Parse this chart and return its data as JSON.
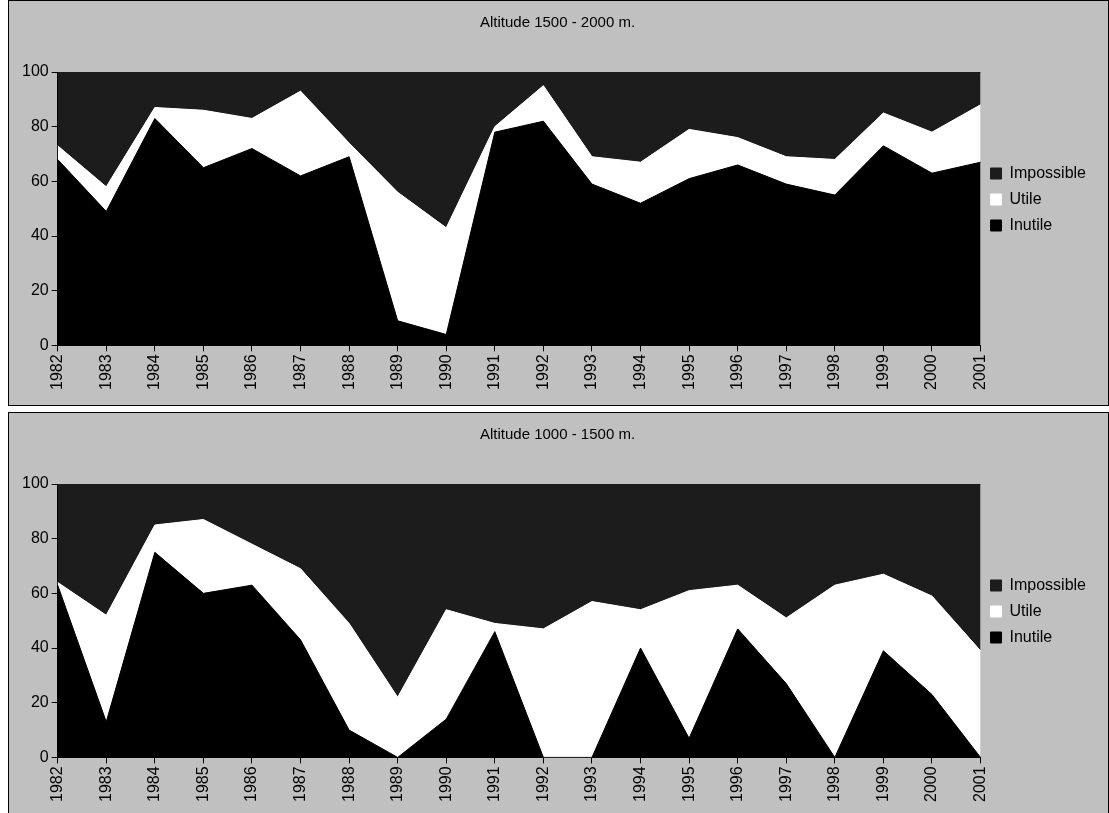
{
  "chart_data": [
    {
      "type": "area",
      "title": "Altitude 1500 - 2000 m.",
      "categories": [
        "1982",
        "1983",
        "1984",
        "1985",
        "1986",
        "1987",
        "1988",
        "1989",
        "1990",
        "1991",
        "1992",
        "1993",
        "1994",
        "1995",
        "1996",
        "1997",
        "1998",
        "1999",
        "2000",
        "2001"
      ],
      "stacked": true,
      "legend": "right",
      "ylim": [
        0,
        100
      ],
      "yticks": [
        0,
        20,
        40,
        60,
        80,
        100
      ],
      "series": [
        {
          "name": "Inutile",
          "color": "#000000",
          "values": [
            68,
            49,
            83,
            65,
            72,
            62,
            69,
            9,
            4,
            78,
            82,
            59,
            52,
            61,
            66,
            59,
            55,
            73,
            63,
            67
          ]
        },
        {
          "name": "Utile",
          "color": "#ffffff",
          "values": [
            5,
            9,
            4,
            21,
            11,
            31,
            5,
            47,
            39,
            2,
            13,
            10,
            15,
            18,
            10,
            10,
            13,
            12,
            15,
            21
          ]
        },
        {
          "name": "Impossible",
          "color": "#1c1c1c",
          "values": [
            27,
            42,
            13,
            14,
            17,
            7,
            26,
            44,
            57,
            20,
            5,
            31,
            33,
            21,
            24,
            31,
            32,
            15,
            22,
            12
          ]
        }
      ]
    },
    {
      "type": "area",
      "title": "Altitude 1000 - 1500 m.",
      "categories": [
        "1982",
        "1983",
        "1984",
        "1985",
        "1986",
        "1987",
        "1988",
        "1989",
        "1990",
        "1991",
        "1992",
        "1993",
        "1994",
        "1995",
        "1996",
        "1997",
        "1998",
        "1999",
        "2000",
        "2001"
      ],
      "stacked": true,
      "legend": "right",
      "ylim": [
        0,
        100
      ],
      "yticks": [
        0,
        20,
        40,
        60,
        80,
        100
      ],
      "series": [
        {
          "name": "Inutile",
          "color": "#000000",
          "values": [
            63,
            13,
            75,
            60,
            63,
            43,
            10,
            0,
            14,
            46,
            0,
            0,
            40,
            7,
            47,
            27,
            0,
            39,
            23,
            0
          ]
        },
        {
          "name": "Utile",
          "color": "#ffffff",
          "values": [
            1,
            39,
            10,
            27,
            15,
            26,
            39,
            22,
            40,
            3,
            47,
            57,
            14,
            54,
            16,
            24,
            63,
            28,
            36,
            39
          ]
        },
        {
          "name": "Impossible",
          "color": "#1c1c1c",
          "values": [
            36,
            48,
            15,
            13,
            22,
            31,
            51,
            78,
            46,
            51,
            53,
            43,
            46,
            39,
            37,
            49,
            37,
            33,
            41,
            61
          ]
        }
      ]
    }
  ]
}
